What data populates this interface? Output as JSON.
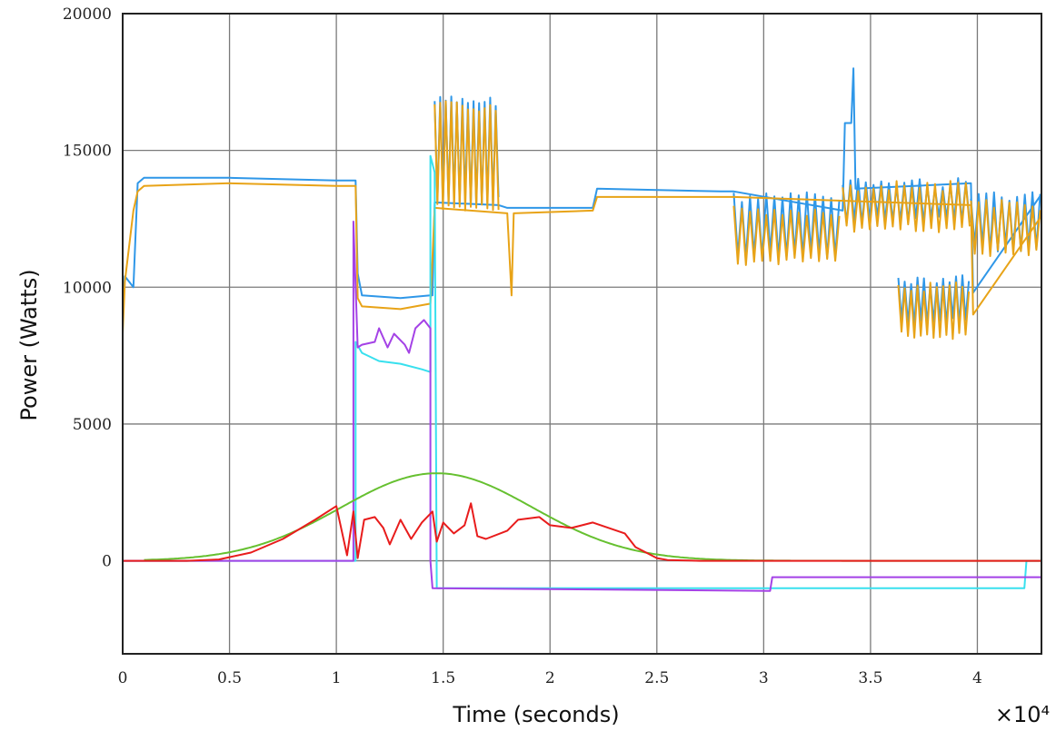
{
  "chart_data": {
    "type": "line",
    "title": "",
    "xlabel": "Time (seconds)",
    "ylabel": "Power (Watts)",
    "x_multiplier": "×10⁴",
    "xlim": [
      0,
      4.3
    ],
    "ylim": [
      -3400,
      20000
    ],
    "x_unit_note_value": 10000,
    "grid": true,
    "legend": "none",
    "x_ticks": [
      0,
      0.5,
      1,
      1.5,
      2,
      2.5,
      3,
      3.5,
      4
    ],
    "x_tick_labels": [
      "0",
      "0.5",
      "1",
      "1.5",
      "2",
      "2.5",
      "3",
      "3.5",
      "4"
    ],
    "y_ticks": [
      0,
      5000,
      10000,
      15000,
      20000
    ],
    "y_tick_labels": [
      "0",
      "5000",
      "10000",
      "15000",
      "20000"
    ],
    "series": [
      {
        "color": "#2f97e8",
        "oscillating": [
          [
            1.46,
            1.76,
            1.3,
            17000,
            13000
          ],
          [
            2.86,
            3.37,
            1.9,
            13500,
            11000
          ],
          [
            3.37,
            3.97,
            1.8,
            14000,
            12300
          ],
          [
            3.63,
            3.97,
            1.5,
            10500,
            8600
          ],
          [
            3.97,
            4.3,
            1.8,
            13500,
            11300
          ]
        ],
        "points": [
          [
            0,
            9000
          ],
          [
            0.01,
            10400
          ],
          [
            0.05,
            10000
          ],
          [
            0.07,
            13800
          ],
          [
            0.1,
            14000
          ],
          [
            0.5,
            14000
          ],
          [
            1,
            13900
          ],
          [
            1.09,
            13900
          ],
          [
            1.1,
            10500
          ],
          [
            1.12,
            9700
          ],
          [
            1.3,
            9600
          ],
          [
            1.44,
            9700
          ],
          [
            1.45,
            9700
          ],
          [
            1.46,
            13100
          ],
          [
            1.76,
            13000
          ],
          [
            1.8,
            12900
          ],
          [
            2.2,
            12900
          ],
          [
            2.22,
            13600
          ],
          [
            2.8,
            13500
          ],
          [
            2.86,
            13500
          ],
          [
            3.37,
            12800
          ],
          [
            3.38,
            16000
          ],
          [
            3.41,
            16000
          ],
          [
            3.42,
            18000
          ],
          [
            3.43,
            13600
          ],
          [
            3.97,
            13800
          ],
          [
            3.98,
            9800
          ],
          [
            4.3,
            13400
          ]
        ]
      },
      {
        "color": "#e8a317",
        "oscillating": [
          [
            1.46,
            1.76,
            1.3,
            16800,
            12800
          ],
          [
            2.86,
            3.37,
            1.9,
            13000,
            10800
          ],
          [
            3.37,
            3.97,
            1.8,
            13900,
            12000
          ],
          [
            3.63,
            3.97,
            1.5,
            10200,
            8100
          ],
          [
            3.97,
            4.3,
            1.8,
            13200,
            11100
          ]
        ],
        "points": [
          [
            0,
            8300
          ],
          [
            0.01,
            10200
          ],
          [
            0.05,
            12800
          ],
          [
            0.07,
            13500
          ],
          [
            0.1,
            13700
          ],
          [
            0.5,
            13800
          ],
          [
            1,
            13700
          ],
          [
            1.09,
            13700
          ],
          [
            1.1,
            9600
          ],
          [
            1.12,
            9300
          ],
          [
            1.3,
            9200
          ],
          [
            1.44,
            9400
          ],
          [
            1.46,
            12900
          ],
          [
            1.8,
            12700
          ],
          [
            1.82,
            9700
          ],
          [
            1.83,
            12700
          ],
          [
            2.2,
            12800
          ],
          [
            2.22,
            13300
          ],
          [
            2.86,
            13300
          ],
          [
            3.97,
            13000
          ],
          [
            3.98,
            9000
          ],
          [
            4.3,
            12600
          ]
        ]
      },
      {
        "color": "#38e0ee",
        "points": [
          [
            0,
            0
          ],
          [
            1.09,
            0
          ],
          [
            1.09,
            8000
          ],
          [
            1.12,
            7600
          ],
          [
            1.2,
            7300
          ],
          [
            1.3,
            7200
          ],
          [
            1.4,
            7000
          ],
          [
            1.44,
            6900
          ],
          [
            1.44,
            14800
          ],
          [
            1.46,
            14200
          ],
          [
            1.47,
            -1000
          ],
          [
            2,
            -1000
          ],
          [
            3.05,
            -1000
          ],
          [
            3.05,
            -1000
          ],
          [
            4.22,
            -1000
          ],
          [
            4.23,
            0
          ],
          [
            4.3,
            0
          ]
        ]
      },
      {
        "color": "#a442e6",
        "points": [
          [
            0,
            0
          ],
          [
            1.08,
            0
          ],
          [
            1.08,
            12400
          ],
          [
            1.1,
            7800
          ],
          [
            1.12,
            7900
          ],
          [
            1.18,
            8000
          ],
          [
            1.2,
            8500
          ],
          [
            1.24,
            7800
          ],
          [
            1.27,
            8300
          ],
          [
            1.32,
            7900
          ],
          [
            1.34,
            7600
          ],
          [
            1.37,
            8500
          ],
          [
            1.41,
            8800
          ],
          [
            1.44,
            8500
          ],
          [
            1.44,
            0
          ],
          [
            1.45,
            -1000
          ],
          [
            3.03,
            -1100
          ],
          [
            3.04,
            -600
          ],
          [
            4.3,
            -600
          ]
        ]
      },
      {
        "color": "#66c030",
        "gaussian": {
          "center": 1.47,
          "sigma": 0.45,
          "peak": 3200,
          "start": 0.1,
          "end": 4.3
        }
      },
      {
        "color": "#e81c1c",
        "points": [
          [
            0,
            0
          ],
          [
            0.3,
            0
          ],
          [
            0.45,
            50
          ],
          [
            0.6,
            300
          ],
          [
            0.75,
            800
          ],
          [
            0.9,
            1500
          ],
          [
            1,
            2000
          ],
          [
            1.05,
            200
          ],
          [
            1.08,
            1800
          ],
          [
            1.1,
            100
          ],
          [
            1.13,
            1500
          ],
          [
            1.18,
            1600
          ],
          [
            1.22,
            1200
          ],
          [
            1.25,
            600
          ],
          [
            1.3,
            1500
          ],
          [
            1.35,
            800
          ],
          [
            1.4,
            1400
          ],
          [
            1.45,
            1800
          ],
          [
            1.47,
            700
          ],
          [
            1.5,
            1400
          ],
          [
            1.55,
            1000
          ],
          [
            1.6,
            1300
          ],
          [
            1.63,
            2100
          ],
          [
            1.66,
            900
          ],
          [
            1.7,
            800
          ],
          [
            1.8,
            1100
          ],
          [
            1.85,
            1500
          ],
          [
            1.95,
            1600
          ],
          [
            2,
            1300
          ],
          [
            2.1,
            1200
          ],
          [
            2.2,
            1400
          ],
          [
            2.35,
            1000
          ],
          [
            2.4,
            500
          ],
          [
            2.45,
            300
          ],
          [
            2.5,
            100
          ],
          [
            2.55,
            30
          ],
          [
            2.7,
            0
          ],
          [
            4.3,
            0
          ]
        ]
      }
    ]
  }
}
